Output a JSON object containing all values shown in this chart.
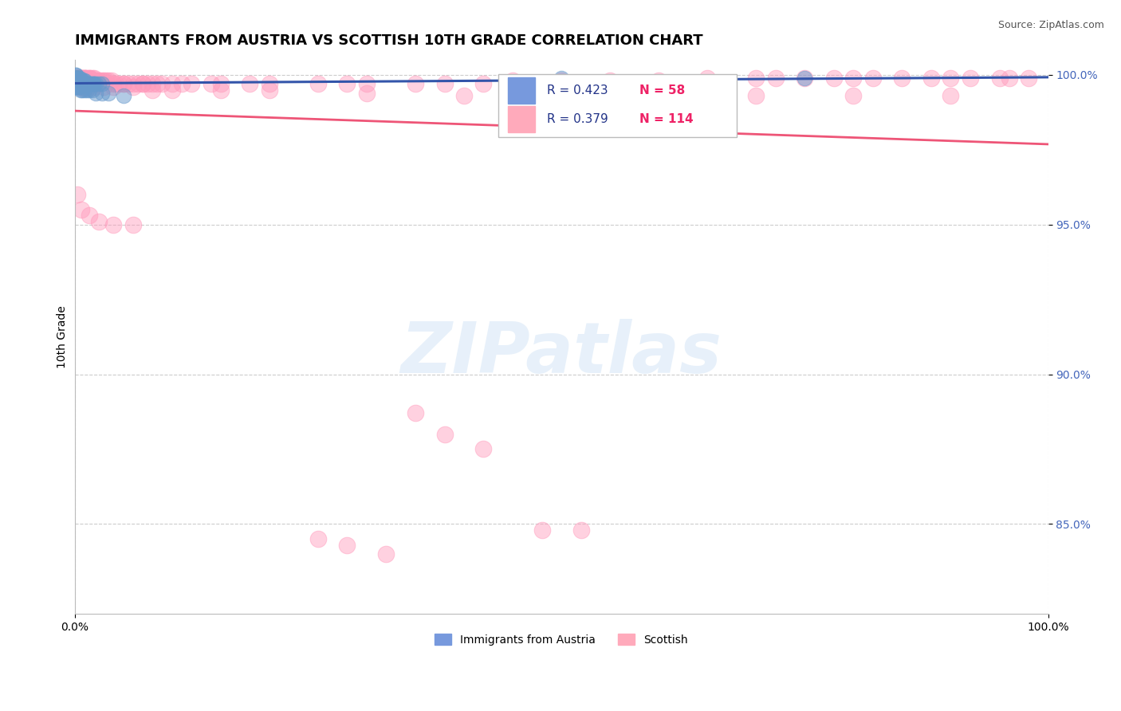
{
  "title": "IMMIGRANTS FROM AUSTRIA VS SCOTTISH 10TH GRADE CORRELATION CHART",
  "source": "Source: ZipAtlas.com",
  "ylabel": "10th Grade",
  "legend_label1": "Immigrants from Austria",
  "legend_label2": "Scottish",
  "R1": 0.423,
  "N1": 58,
  "R2": 0.379,
  "N2": 114,
  "color_blue": "#6699CC",
  "color_pink": "#FF99BB",
  "color_blue_line": "#3355AA",
  "color_pink_line": "#EE5577",
  "color_blue_legend": "#7799DD",
  "color_pink_legend": "#FFAABB",
  "blue_x": [
    0.0008,
    0.001,
    0.001,
    0.0012,
    0.0015,
    0.002,
    0.002,
    0.002,
    0.0025,
    0.003,
    0.003,
    0.003,
    0.0035,
    0.004,
    0.004,
    0.004,
    0.005,
    0.005,
    0.006,
    0.006,
    0.007,
    0.007,
    0.008,
    0.008,
    0.009,
    0.009,
    0.01,
    0.01,
    0.011,
    0.012,
    0.013,
    0.014,
    0.015,
    0.016,
    0.018,
    0.019,
    0.02,
    0.022,
    0.025,
    0.028,
    0.001,
    0.0015,
    0.002,
    0.003,
    0.004,
    0.005,
    0.006,
    0.008,
    0.01,
    0.013,
    0.015,
    0.018,
    0.022,
    0.028,
    0.035,
    0.05,
    0.5,
    0.75
  ],
  "blue_y": [
    1.0,
    1.0,
    0.999,
    0.999,
    0.999,
    0.999,
    0.999,
    0.999,
    0.999,
    0.999,
    0.999,
    0.998,
    0.999,
    0.999,
    0.999,
    0.998,
    0.999,
    0.998,
    0.998,
    0.998,
    0.998,
    0.998,
    0.998,
    0.997,
    0.998,
    0.997,
    0.998,
    0.997,
    0.997,
    0.997,
    0.997,
    0.997,
    0.997,
    0.997,
    0.997,
    0.997,
    0.997,
    0.997,
    0.997,
    0.997,
    0.996,
    0.996,
    0.996,
    0.996,
    0.996,
    0.996,
    0.995,
    0.995,
    0.995,
    0.995,
    0.995,
    0.995,
    0.994,
    0.994,
    0.994,
    0.993,
    0.999,
    0.999
  ],
  "pink_x": [
    0.0005,
    0.001,
    0.001,
    0.0015,
    0.002,
    0.002,
    0.003,
    0.003,
    0.004,
    0.004,
    0.005,
    0.005,
    0.006,
    0.006,
    0.007,
    0.008,
    0.008,
    0.009,
    0.01,
    0.01,
    0.011,
    0.012,
    0.013,
    0.015,
    0.015,
    0.016,
    0.018,
    0.02,
    0.02,
    0.022,
    0.025,
    0.025,
    0.028,
    0.03,
    0.032,
    0.035,
    0.038,
    0.04,
    0.042,
    0.045,
    0.05,
    0.05,
    0.055,
    0.06,
    0.065,
    0.07,
    0.07,
    0.075,
    0.08,
    0.085,
    0.09,
    0.1,
    0.11,
    0.12,
    0.14,
    0.15,
    0.18,
    0.2,
    0.25,
    0.28,
    0.3,
    0.35,
    0.38,
    0.42,
    0.45,
    0.5,
    0.55,
    0.6,
    0.65,
    0.7,
    0.72,
    0.75,
    0.78,
    0.8,
    0.82,
    0.85,
    0.88,
    0.9,
    0.92,
    0.95,
    0.96,
    0.98,
    0.005,
    0.008,
    0.012,
    0.02,
    0.03,
    0.04,
    0.06,
    0.08,
    0.1,
    0.15,
    0.2,
    0.3,
    0.4,
    0.5,
    0.6,
    0.7,
    0.8,
    0.9,
    0.003,
    0.007,
    0.015,
    0.025,
    0.04,
    0.06,
    0.35,
    0.38,
    0.42,
    0.25,
    0.28,
    0.32,
    0.48,
    0.52
  ],
  "pink_y": [
    0.999,
    0.999,
    0.999,
    0.999,
    0.999,
    0.999,
    0.999,
    0.999,
    0.999,
    0.999,
    0.999,
    0.999,
    0.999,
    0.999,
    0.999,
    0.999,
    0.999,
    0.999,
    0.999,
    0.999,
    0.999,
    0.999,
    0.999,
    0.999,
    0.999,
    0.999,
    0.999,
    0.999,
    0.998,
    0.998,
    0.998,
    0.998,
    0.998,
    0.998,
    0.998,
    0.998,
    0.998,
    0.997,
    0.997,
    0.997,
    0.997,
    0.997,
    0.997,
    0.997,
    0.997,
    0.997,
    0.997,
    0.997,
    0.997,
    0.997,
    0.997,
    0.997,
    0.997,
    0.997,
    0.997,
    0.997,
    0.997,
    0.997,
    0.997,
    0.997,
    0.997,
    0.997,
    0.997,
    0.997,
    0.998,
    0.998,
    0.998,
    0.998,
    0.999,
    0.999,
    0.999,
    0.999,
    0.999,
    0.999,
    0.999,
    0.999,
    0.999,
    0.999,
    0.999,
    0.999,
    0.999,
    0.999,
    0.996,
    0.996,
    0.996,
    0.996,
    0.996,
    0.996,
    0.996,
    0.995,
    0.995,
    0.995,
    0.995,
    0.994,
    0.993,
    0.993,
    0.993,
    0.993,
    0.993,
    0.993,
    0.96,
    0.955,
    0.953,
    0.951,
    0.95,
    0.95,
    0.887,
    0.88,
    0.875,
    0.845,
    0.843,
    0.84,
    0.848,
    0.848
  ],
  "xlim": [
    0.0,
    1.0
  ],
  "ylim": [
    0.82,
    1.005
  ],
  "yticks": [
    0.85,
    0.9,
    0.95,
    1.0
  ],
  "ytick_labels": [
    "85.0%",
    "90.0%",
    "95.0%",
    "100.0%"
  ],
  "xtick_labels": [
    "0.0%",
    "100.0%"
  ],
  "grid_color": "#CCCCCC",
  "background_color": "#FFFFFF",
  "title_fontsize": 13,
  "axis_label_fontsize": 10,
  "legend_fontsize": 11,
  "tick_fontsize": 10
}
